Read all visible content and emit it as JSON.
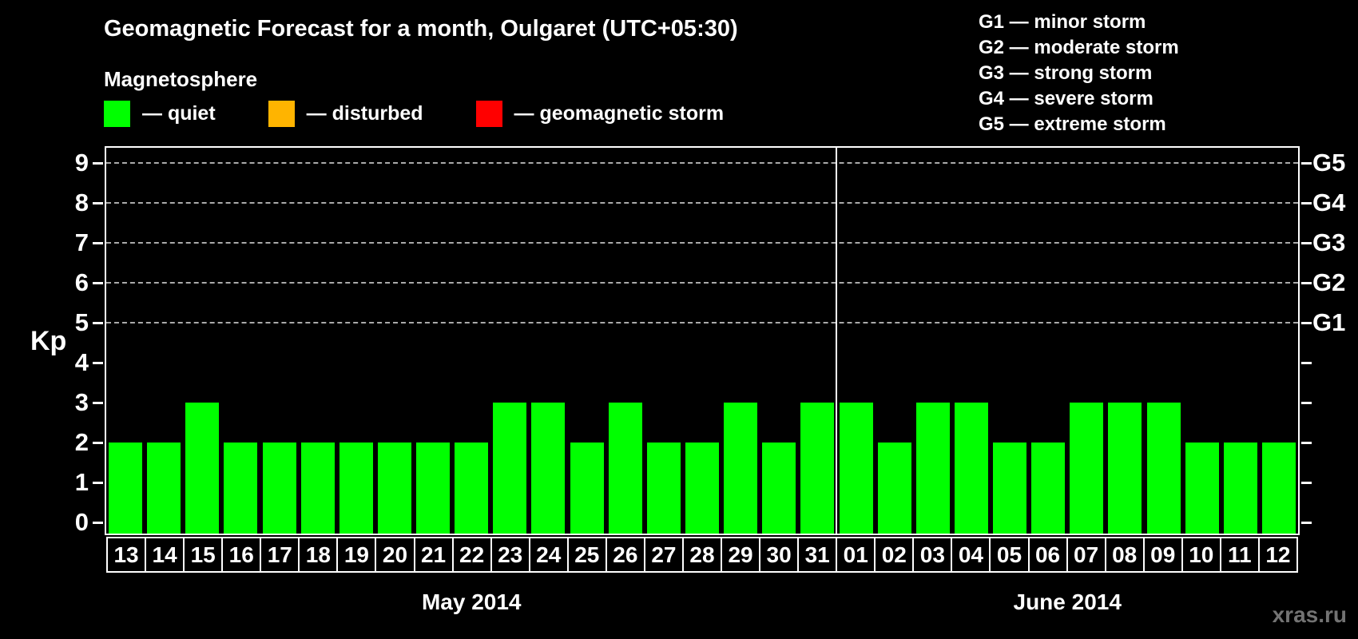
{
  "watermark": "xras.ru",
  "chart_data": {
    "type": "bar",
    "title": "Geomagnetic Forecast for a month, Oulgaret (UTC+05:30)",
    "legend": {
      "title": "Magnetosphere",
      "items": [
        {
          "name": "quiet",
          "label": "— quiet",
          "color": "#00ff00"
        },
        {
          "name": "disturbed",
          "label": "— disturbed",
          "color": "#ffb400"
        },
        {
          "name": "geomagnetic-storm",
          "label": "— geomagnetic storm",
          "color": "#ff0000"
        }
      ]
    },
    "g_scale_legend": [
      "G1 — minor storm",
      "G2 — moderate storm",
      "G3 — strong storm",
      "G4 — severe storm",
      "G5 — extreme storm"
    ],
    "ylabel": "Kp",
    "ylim": [
      0,
      9
    ],
    "yticks": [
      0,
      1,
      2,
      3,
      4,
      5,
      6,
      7,
      8,
      9
    ],
    "gridlines_at": [
      5,
      6,
      7,
      8,
      9
    ],
    "grid": "dashed horizontal lines at G-storm levels only",
    "legend_position": "top",
    "right_axis_labels": [
      {
        "label": "G1",
        "kp": 5
      },
      {
        "label": "G2",
        "kp": 6
      },
      {
        "label": "G3",
        "kp": 7
      },
      {
        "label": "G4",
        "kp": 8
      },
      {
        "label": "G5",
        "kp": 9
      }
    ],
    "bar_color": "#00ff00",
    "bar_state": "quiet",
    "categories": [
      "13",
      "14",
      "15",
      "16",
      "17",
      "18",
      "19",
      "20",
      "21",
      "22",
      "23",
      "24",
      "25",
      "26",
      "27",
      "28",
      "29",
      "30",
      "31",
      "01",
      "02",
      "03",
      "04",
      "05",
      "06",
      "07",
      "08",
      "09",
      "10",
      "11",
      "12"
    ],
    "values": [
      2,
      2,
      3,
      2,
      2,
      2,
      2,
      2,
      2,
      2,
      3,
      3,
      2,
      3,
      2,
      2,
      3,
      2,
      3,
      3,
      2,
      3,
      3,
      2,
      2,
      3,
      3,
      3,
      2,
      2,
      2
    ],
    "month_groups": [
      {
        "label": "May 2014",
        "count": 19
      },
      {
        "label": "June 2014",
        "count": 12
      }
    ]
  }
}
